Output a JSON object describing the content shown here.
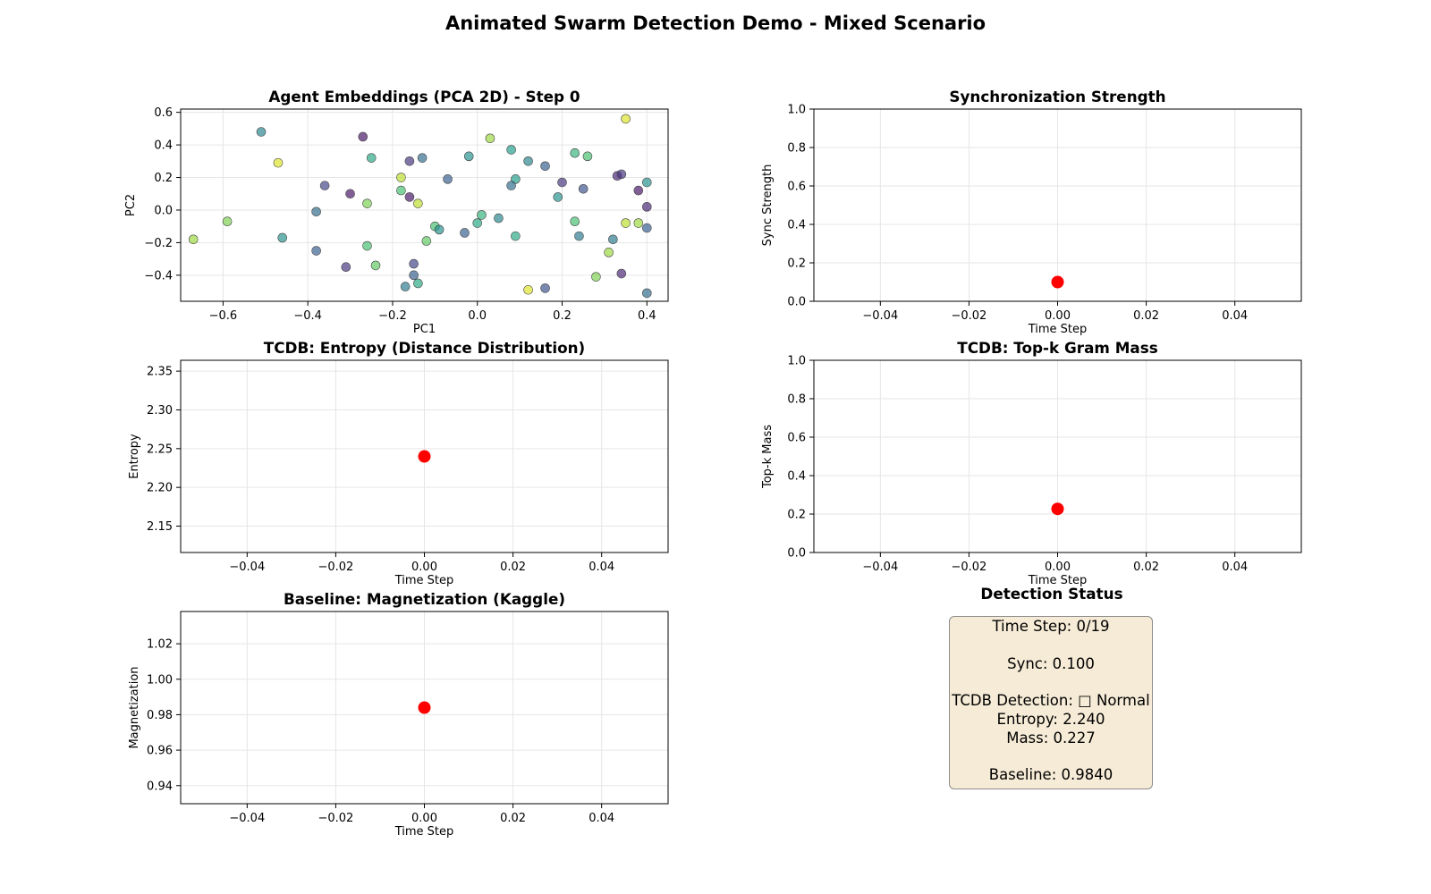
{
  "figure_title": "Animated Swarm Detection Demo - Mixed Scenario",
  "chart_data": [
    {
      "type": "scatter",
      "title": "Agent Embeddings (PCA 2D) - Step 0",
      "xlabel": "PC1",
      "ylabel": "PC2",
      "xlim": [
        -0.7,
        0.45
      ],
      "ylim": [
        -0.56,
        0.62
      ],
      "xticks": [
        -0.6,
        -0.4,
        -0.2,
        0.0,
        0.2,
        0.4
      ],
      "xtick_labels": [
        "−0.6",
        "−0.4",
        "−0.2",
        "0.0",
        "0.2",
        "0.4"
      ],
      "yticks": [
        -0.4,
        -0.2,
        0.0,
        0.2,
        0.4,
        0.6
      ],
      "ytick_labels": [
        "−0.4",
        "−0.2",
        "0.0",
        "0.2",
        "0.4",
        "0.6"
      ],
      "grid": true,
      "colormap": "viridis",
      "points": [
        {
          "x": -0.51,
          "y": 0.48,
          "c": 0.45
        },
        {
          "x": -0.27,
          "y": 0.45,
          "c": 0.05
        },
        {
          "x": -0.47,
          "y": 0.29,
          "c": 0.95
        },
        {
          "x": -0.25,
          "y": 0.32,
          "c": 0.6
        },
        {
          "x": -0.16,
          "y": 0.3,
          "c": 0.15
        },
        {
          "x": -0.13,
          "y": 0.32,
          "c": 0.35
        },
        {
          "x": -0.02,
          "y": 0.33,
          "c": 0.5
        },
        {
          "x": 0.03,
          "y": 0.44,
          "c": 0.85
        },
        {
          "x": 0.08,
          "y": 0.37,
          "c": 0.55
        },
        {
          "x": 0.12,
          "y": 0.3,
          "c": 0.45
        },
        {
          "x": 0.16,
          "y": 0.27,
          "c": 0.3
        },
        {
          "x": 0.23,
          "y": 0.35,
          "c": 0.65
        },
        {
          "x": 0.26,
          "y": 0.33,
          "c": 0.7
        },
        {
          "x": 0.35,
          "y": 0.56,
          "c": 0.95
        },
        {
          "x": -0.18,
          "y": 0.2,
          "c": 0.9
        },
        {
          "x": -0.07,
          "y": 0.19,
          "c": 0.3
        },
        {
          "x": 0.09,
          "y": 0.19,
          "c": 0.55
        },
        {
          "x": 0.08,
          "y": 0.15,
          "c": 0.35
        },
        {
          "x": 0.2,
          "y": 0.17,
          "c": 0.15
        },
        {
          "x": 0.25,
          "y": 0.13,
          "c": 0.25
        },
        {
          "x": 0.33,
          "y": 0.21,
          "c": 0.1
        },
        {
          "x": 0.34,
          "y": 0.22,
          "c": 0.15
        },
        {
          "x": 0.38,
          "y": 0.12,
          "c": 0.05
        },
        {
          "x": 0.4,
          "y": 0.17,
          "c": 0.5
        },
        {
          "x": -0.36,
          "y": 0.15,
          "c": 0.2
        },
        {
          "x": -0.3,
          "y": 0.1,
          "c": 0.05
        },
        {
          "x": -0.26,
          "y": 0.04,
          "c": 0.8
        },
        {
          "x": -0.18,
          "y": 0.12,
          "c": 0.7
        },
        {
          "x": -0.16,
          "y": 0.08,
          "c": 0.05
        },
        {
          "x": -0.14,
          "y": 0.04,
          "c": 0.9
        },
        {
          "x": 0.19,
          "y": 0.08,
          "c": 0.5
        },
        {
          "x": 0.4,
          "y": 0.02,
          "c": 0.1
        },
        {
          "x": -0.38,
          "y": -0.01,
          "c": 0.35
        },
        {
          "x": -0.59,
          "y": -0.07,
          "c": 0.8
        },
        {
          "x": -0.67,
          "y": -0.18,
          "c": 0.85
        },
        {
          "x": -0.46,
          "y": -0.17,
          "c": 0.5
        },
        {
          "x": -0.38,
          "y": -0.25,
          "c": 0.3
        },
        {
          "x": -0.26,
          "y": -0.22,
          "c": 0.7
        },
        {
          "x": -0.24,
          "y": -0.34,
          "c": 0.75
        },
        {
          "x": -0.31,
          "y": -0.35,
          "c": 0.15
        },
        {
          "x": -0.1,
          "y": -0.1,
          "c": 0.7
        },
        {
          "x": -0.09,
          "y": -0.12,
          "c": 0.5
        },
        {
          "x": -0.12,
          "y": -0.19,
          "c": 0.75
        },
        {
          "x": -0.03,
          "y": -0.14,
          "c": 0.3
        },
        {
          "x": 0.0,
          "y": -0.08,
          "c": 0.6
        },
        {
          "x": 0.01,
          "y": -0.03,
          "c": 0.65
        },
        {
          "x": 0.05,
          "y": -0.05,
          "c": 0.45
        },
        {
          "x": 0.09,
          "y": -0.16,
          "c": 0.6
        },
        {
          "x": 0.23,
          "y": -0.07,
          "c": 0.7
        },
        {
          "x": 0.24,
          "y": -0.16,
          "c": 0.4
        },
        {
          "x": 0.32,
          "y": -0.18,
          "c": 0.4
        },
        {
          "x": 0.35,
          "y": -0.08,
          "c": 0.9
        },
        {
          "x": 0.38,
          "y": -0.08,
          "c": 0.85
        },
        {
          "x": 0.4,
          "y": -0.11,
          "c": 0.3
        },
        {
          "x": 0.31,
          "y": -0.26,
          "c": 0.85
        },
        {
          "x": 0.28,
          "y": -0.41,
          "c": 0.8
        },
        {
          "x": 0.34,
          "y": -0.39,
          "c": 0.1
        },
        {
          "x": 0.4,
          "y": -0.51,
          "c": 0.35
        },
        {
          "x": 0.16,
          "y": -0.48,
          "c": 0.25
        },
        {
          "x": 0.12,
          "y": -0.49,
          "c": 0.95
        },
        {
          "x": -0.15,
          "y": -0.33,
          "c": 0.2
        },
        {
          "x": -0.15,
          "y": -0.4,
          "c": 0.3
        },
        {
          "x": -0.14,
          "y": -0.45,
          "c": 0.6
        },
        {
          "x": -0.17,
          "y": -0.47,
          "c": 0.4
        }
      ]
    },
    {
      "type": "line",
      "title": "Synchronization Strength",
      "xlabel": "Time Step",
      "ylabel": "Sync Strength",
      "xlim": [
        -0.055,
        0.055
      ],
      "ylim": [
        0.0,
        1.0
      ],
      "xticks": [
        -0.04,
        -0.02,
        0.0,
        0.02,
        0.04
      ],
      "xtick_labels": [
        "−0.04",
        "−0.02",
        "0.00",
        "0.02",
        "0.04"
      ],
      "yticks": [
        0.0,
        0.2,
        0.4,
        0.6,
        0.8,
        1.0
      ],
      "ytick_labels": [
        "0.0",
        "0.2",
        "0.4",
        "0.6",
        "0.8",
        "1.0"
      ],
      "grid": true,
      "x": [
        0
      ],
      "y": [
        0.1
      ]
    },
    {
      "type": "line",
      "title": "TCDB: Entropy (Distance Distribution)",
      "xlabel": "Time Step",
      "ylabel": "Entropy",
      "xlim": [
        -0.055,
        0.055
      ],
      "ylim": [
        2.116,
        2.364
      ],
      "xticks": [
        -0.04,
        -0.02,
        0.0,
        0.02,
        0.04
      ],
      "xtick_labels": [
        "−0.04",
        "−0.02",
        "0.00",
        "0.02",
        "0.04"
      ],
      "yticks": [
        2.15,
        2.2,
        2.25,
        2.3,
        2.35
      ],
      "ytick_labels": [
        "2.15",
        "2.20",
        "2.25",
        "2.30",
        "2.35"
      ],
      "grid": true,
      "x": [
        0
      ],
      "y": [
        2.24
      ]
    },
    {
      "type": "line",
      "title": "TCDB: Top-k Gram Mass",
      "xlabel": "Time Step",
      "ylabel": "Top-k Mass",
      "xlim": [
        -0.055,
        0.055
      ],
      "ylim": [
        0.0,
        1.0
      ],
      "xticks": [
        -0.04,
        -0.02,
        0.0,
        0.02,
        0.04
      ],
      "xtick_labels": [
        "−0.04",
        "−0.02",
        "0.00",
        "0.02",
        "0.04"
      ],
      "yticks": [
        0.0,
        0.2,
        0.4,
        0.6,
        0.8,
        1.0
      ],
      "ytick_labels": [
        "0.0",
        "0.2",
        "0.4",
        "0.6",
        "0.8",
        "1.0"
      ],
      "grid": true,
      "x": [
        0
      ],
      "y": [
        0.227
      ]
    },
    {
      "type": "line",
      "title": "Baseline: Magnetization (Kaggle)",
      "xlabel": "Time Step",
      "ylabel": "Magnetization",
      "xlim": [
        -0.055,
        0.055
      ],
      "ylim": [
        0.9298,
        1.0382
      ],
      "xticks": [
        -0.04,
        -0.02,
        0.0,
        0.02,
        0.04
      ],
      "xtick_labels": [
        "−0.04",
        "−0.02",
        "0.00",
        "0.02",
        "0.04"
      ],
      "yticks": [
        0.94,
        0.96,
        0.98,
        1.0,
        1.02
      ],
      "ytick_labels": [
        "0.94",
        "0.96",
        "0.98",
        "1.00",
        "1.02"
      ],
      "grid": true,
      "x": [
        0
      ],
      "y": [
        0.984
      ]
    }
  ],
  "status": {
    "title": "Detection Status",
    "lines": [
      "Time Step: 0/19",
      "",
      "Sync: 0.100",
      "",
      "TCDB Detection: □ Normal",
      "Entropy: 2.240",
      "Mass: 0.227",
      "",
      "Baseline: 0.9840"
    ]
  },
  "colors": {
    "marker": "#ff0000",
    "grid": "#e6e6e6",
    "status_box": "#f6ebd6"
  }
}
